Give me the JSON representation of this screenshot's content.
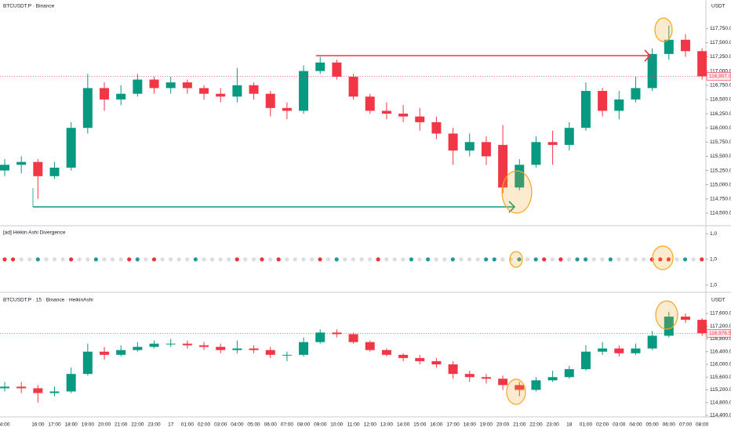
{
  "chart_data": [
    {
      "type": "candlestick",
      "title": "BTCUSDT.P · Binance",
      "unit": "USDT",
      "up_color": "#089981",
      "down_color": "#f23645",
      "open": [
        115250,
        115350,
        115400,
        115150,
        115300,
        116000,
        116700,
        116500,
        116600,
        116850,
        116700,
        116800,
        116700,
        116600,
        116550,
        116750,
        116600,
        116350,
        116300,
        117000,
        117150,
        116900,
        116550,
        116300,
        116250,
        116200,
        116100,
        115900,
        115600,
        115750,
        115700,
        114950,
        115350,
        115750,
        115700,
        116000,
        116650,
        116300,
        116500,
        116700,
        117300,
        117550,
        117350
      ],
      "high": [
        115450,
        115500,
        115450,
        115400,
        116100,
        116950,
        116800,
        116750,
        116950,
        116900,
        116900,
        116850,
        116750,
        116700,
        117050,
        116800,
        116650,
        116450,
        117100,
        117250,
        117200,
        116950,
        116600,
        116450,
        116400,
        116350,
        116200,
        116000,
        115900,
        115850,
        116050,
        115450,
        115850,
        115950,
        116100,
        116800,
        116700,
        116650,
        116900,
        117400,
        117800,
        117650,
        117400
      ],
      "low": [
        115150,
        115200,
        114750,
        115100,
        115250,
        115900,
        116300,
        116400,
        116550,
        116600,
        116600,
        116600,
        116500,
        116450,
        116450,
        116500,
        116200,
        116150,
        116250,
        116950,
        116850,
        116500,
        116250,
        116150,
        116100,
        115950,
        115800,
        115350,
        115500,
        115350,
        114850,
        114900,
        115300,
        115350,
        115600,
        115950,
        116200,
        116150,
        116450,
        116650,
        117200,
        117250,
        116850
      ],
      "close": [
        115350,
        115400,
        115150,
        115300,
        116000,
        116700,
        116500,
        116600,
        116850,
        116700,
        116800,
        116700,
        116600,
        116550,
        116750,
        116600,
        116350,
        116300,
        117000,
        117150,
        116900,
        116550,
        116300,
        116250,
        116200,
        116100,
        115900,
        115600,
        115750,
        115500,
        114950,
        115350,
        115750,
        115700,
        116000,
        116650,
        116300,
        116500,
        116700,
        117300,
        117550,
        117350,
        116907
      ],
      "ylim": [
        114320,
        118250
      ],
      "yticks": [
        {
          "value": 114500,
          "label": "114,500.0"
        },
        {
          "value": 114750,
          "label": "114,750.0"
        },
        {
          "value": 115000,
          "label": "115,000.0"
        },
        {
          "value": 115250,
          "label": "115,250.0"
        },
        {
          "value": 115500,
          "label": "115,500.0"
        },
        {
          "value": 115750,
          "label": "115,750.0"
        },
        {
          "value": 116000,
          "label": "116,000.0"
        },
        {
          "value": 116250,
          "label": "116,250.0"
        },
        {
          "value": 116500,
          "label": "116,500.0"
        },
        {
          "value": 116750,
          "label": "116,750.0"
        },
        {
          "value": 117000,
          "label": "117,000.0"
        },
        {
          "value": 117250,
          "label": "117,250.0"
        },
        {
          "value": 117500,
          "label": "117,500.0"
        },
        {
          "value": 117750,
          "label": "117,750.0"
        }
      ],
      "last_price": {
        "value": 116907,
        "label": "116,907.0"
      }
    },
    {
      "type": "dots",
      "title": "[ad] Heikin Ashi Divergence",
      "values": [
        1,
        1,
        1,
        1,
        1,
        1,
        1,
        1,
        1,
        1,
        1,
        1,
        1,
        1,
        1,
        1,
        1,
        1,
        1,
        1,
        1,
        1,
        1,
        1,
        1,
        1,
        1,
        1,
        1,
        1,
        1,
        1,
        1,
        1,
        1,
        1,
        1,
        1,
        1,
        1,
        1,
        1,
        1,
        1,
        1,
        1,
        1,
        1,
        1,
        1,
        1,
        1,
        1,
        1,
        1,
        1,
        1,
        1,
        1,
        1,
        1,
        1,
        1,
        1,
        1,
        1,
        1,
        1,
        1,
        1,
        1,
        1,
        1,
        1,
        1,
        1,
        1,
        1,
        1,
        1,
        1,
        1,
        1,
        1,
        1
      ],
      "colors": [
        "#e33",
        "#e33",
        "#ddd",
        "#ddd",
        "#299",
        "#ddd",
        "#ddd",
        "#ddd",
        "#e33",
        "#ddd",
        "#ddd",
        "#299",
        "#ddd",
        "#ddd",
        "#ddd",
        "#e33",
        "#299",
        "#ddd",
        "#e33",
        "#ddd",
        "#ddd",
        "#ddd",
        "#ddd",
        "#299",
        "#ddd",
        "#ddd",
        "#ddd",
        "#ddd",
        "#e33",
        "#ddd",
        "#ddd",
        "#e33",
        "#ddd",
        "#e33",
        "#ddd",
        "#ddd",
        "#ddd",
        "#ddd",
        "#e33",
        "#ddd",
        "#299",
        "#ddd",
        "#ddd",
        "#ddd",
        "#ddd",
        "#e33",
        "#ddd",
        "#ddd",
        "#ddd",
        "#299",
        "#ddd",
        "#299",
        "#ddd",
        "#ddd",
        "#299",
        "#ddd",
        "#ddd",
        "#ddd",
        "#299",
        "#299",
        "#ddd",
        "#ddd",
        "#299",
        "#ddd",
        "#299",
        "#e33",
        "#ddd",
        "#e33",
        "#ddd",
        "#299",
        "#299",
        "#ddd",
        "#ddd",
        "#299",
        "#ddd",
        "#ddd",
        "#ddd",
        "#ddd",
        "#e33",
        "#e33",
        "#e33",
        "#ddd",
        "#299",
        "#ddd",
        "#e33"
      ],
      "ylim": [
        0.95,
        1.05
      ],
      "yticks": [
        {
          "value": 1.04,
          "label": "1,0"
        },
        {
          "value": 1,
          "label": "1,0"
        },
        {
          "value": 0.96,
          "label": "1,0"
        }
      ]
    },
    {
      "type": "candlestick",
      "title": "BTCUSDT.P · 15 · Binance · HeikinAshi",
      "unit": "USDT",
      "up_color": "#089981",
      "down_color": "#f23645",
      "categories": [
        "4:00",
        null,
        "16:00",
        "17:00",
        "18:00",
        "19:00",
        "20:00",
        "21:00",
        "22:00",
        "23:00",
        "17",
        "01:00",
        "02:00",
        "03:00",
        "04:00",
        "05:00",
        "06:00",
        "07:00",
        "08:00",
        "09:00",
        "10:00",
        "11:00",
        "12:00",
        "13:00",
        "14:00",
        "15:00",
        "16:00",
        "17:00",
        "18:00",
        "19:00",
        "20:00",
        "21:00",
        "22:00",
        "23:00",
        "18",
        "01:00",
        "02:00",
        "03:00",
        "04:00",
        "05:00",
        "06:00",
        "07:00",
        "08:00"
      ],
      "open": [
        115250,
        115300,
        115250,
        115100,
        115150,
        115700,
        116400,
        116300,
        116450,
        116550,
        116650,
        116650,
        116600,
        116550,
        116450,
        116500,
        116450,
        116300,
        116300,
        116700,
        117000,
        116950,
        116700,
        116450,
        116300,
        116200,
        116100,
        116000,
        115700,
        115600,
        115550,
        115350,
        115200,
        115500,
        115600,
        115850,
        116400,
        116500,
        116350,
        116500,
        116900,
        117500,
        117400
      ],
      "high": [
        115450,
        115450,
        115350,
        115300,
        115900,
        116650,
        116550,
        116600,
        116700,
        116750,
        116800,
        116750,
        116700,
        116650,
        116750,
        116600,
        116550,
        116400,
        116850,
        117100,
        117100,
        117000,
        116750,
        116500,
        116350,
        116300,
        116200,
        116100,
        115800,
        115700,
        115650,
        115450,
        115600,
        115800,
        115950,
        116600,
        116700,
        116600,
        116650,
        117050,
        117650,
        117600,
        117450
      ],
      "low": [
        115150,
        115100,
        114800,
        115000,
        115100,
        115650,
        116150,
        116250,
        116400,
        116500,
        116550,
        116500,
        116450,
        116350,
        116350,
        116350,
        116200,
        116100,
        116250,
        116650,
        116850,
        116650,
        116400,
        116250,
        116100,
        116000,
        115900,
        115550,
        115450,
        115400,
        115200,
        115000,
        115150,
        115450,
        115550,
        115800,
        116300,
        116250,
        116300,
        116450,
        116850,
        117300,
        116900
      ],
      "close": [
        115300,
        115250,
        115100,
        115150,
        115700,
        116400,
        116300,
        116450,
        116550,
        116650,
        116650,
        116600,
        116550,
        116450,
        116500,
        116450,
        116300,
        116300,
        116700,
        117000,
        116950,
        116700,
        116450,
        116300,
        116200,
        116100,
        116000,
        115700,
        115600,
        115550,
        115350,
        115200,
        115500,
        115600,
        115850,
        116400,
        116500,
        116350,
        116500,
        116900,
        117500,
        117400,
        116976.5
      ],
      "ylim": [
        114400,
        118215
      ],
      "yticks": [
        {
          "value": 114400,
          "label": "114,400.0"
        },
        {
          "value": 114800,
          "label": "114,800.0"
        },
        {
          "value": 115200,
          "label": "115,200.0"
        },
        {
          "value": 115600,
          "label": "115,600.0"
        },
        {
          "value": 116000,
          "label": "116,000.0"
        },
        {
          "value": 116400,
          "label": "116,400.0"
        },
        {
          "value": 116800,
          "label": "116,800.0"
        },
        {
          "value": 117200,
          "label": "117,200.0"
        },
        {
          "value": 117600,
          "label": "117,600.0"
        }
      ],
      "last_price": {
        "value": 116976.5,
        "label": "116,976.5"
      }
    }
  ]
}
